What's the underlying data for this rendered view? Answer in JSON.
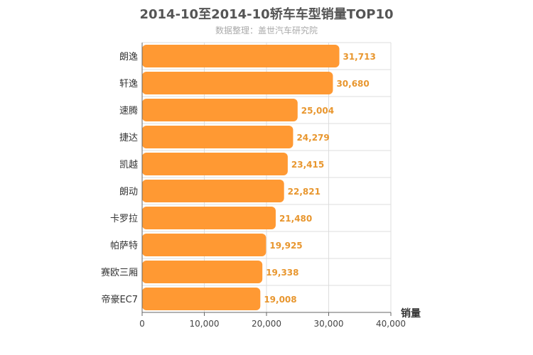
{
  "chart_data": {
    "type": "bar",
    "orientation": "horizontal",
    "title": "2014-10至2014-10轿车车型销量TOP10",
    "subtitle": "数据整理：盖世汽车研究院",
    "xlabel": "销量",
    "ylabel": "",
    "xlim": [
      0,
      40000
    ],
    "xticks": [
      0,
      10000,
      20000,
      30000,
      40000
    ],
    "xtick_labels": [
      "0",
      "10,000",
      "20,000",
      "30,000",
      "40,000"
    ],
    "grid": true,
    "legend": "none",
    "bar_color": "#FF9933",
    "label_color": "#E8962E",
    "categories": [
      "朗逸",
      "轩逸",
      "速腾",
      "捷达",
      "凯越",
      "朗动",
      "卡罗拉",
      "帕萨特",
      "赛欧三厢",
      "帝豪EC7"
    ],
    "values": [
      31713,
      30680,
      25004,
      24279,
      23415,
      22821,
      21480,
      19925,
      19338,
      19008
    ],
    "value_labels": [
      "31,713",
      "30,680",
      "25,004",
      "24,279",
      "23,415",
      "22,821",
      "21,480",
      "19,925",
      "19,338",
      "19,008"
    ]
  }
}
